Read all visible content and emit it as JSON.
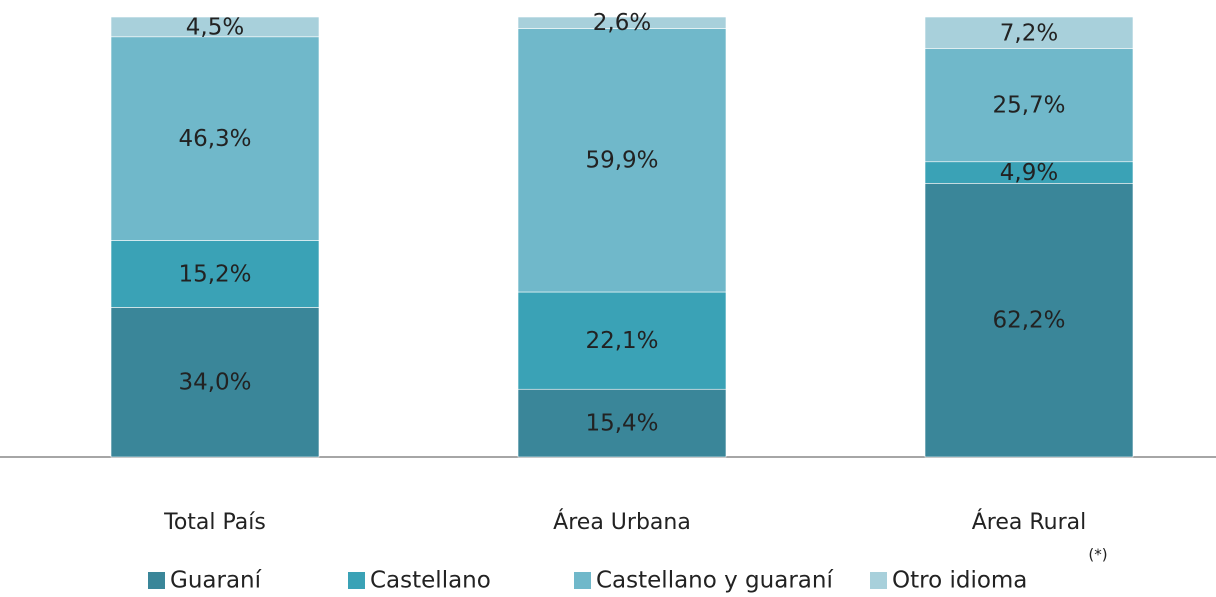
{
  "chart_data": {
    "type": "stacked_bar",
    "categories": [
      "Total País",
      "Área Urbana",
      "Área Rural"
    ],
    "series": [
      {
        "name": "Guaraní",
        "color": "#3a8699",
        "values": [
          34.0,
          15.4,
          62.2
        ],
        "value_labels": [
          "34,0%",
          "15,4%",
          "62,2%"
        ]
      },
      {
        "name": "Castellano",
        "color": "#3aa2b6",
        "values": [
          15.2,
          22.1,
          4.9
        ],
        "value_labels": [
          "15,2%",
          "22,1%",
          "4,9%"
        ]
      },
      {
        "name": "Castellano y guaraní",
        "color": "#70b8ca",
        "values": [
          46.3,
          59.9,
          25.7
        ],
        "value_labels": [
          "46,3%",
          "59,9%",
          "25,7%"
        ]
      },
      {
        "name": "Otro idioma",
        "color": "#a8d0db",
        "values": [
          4.5,
          2.6,
          7.2
        ],
        "value_labels": [
          "4,5%",
          "2,6%",
          "7,2%"
        ]
      }
    ],
    "annotation": "(*)",
    "ylim": [
      0,
      100
    ]
  }
}
